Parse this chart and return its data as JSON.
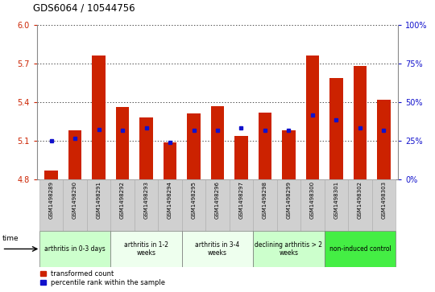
{
  "title": "GDS6064 / 10544756",
  "samples": [
    "GSM1498289",
    "GSM1498290",
    "GSM1498291",
    "GSM1498292",
    "GSM1498293",
    "GSM1498294",
    "GSM1498295",
    "GSM1498296",
    "GSM1498297",
    "GSM1498298",
    "GSM1498299",
    "GSM1498300",
    "GSM1498301",
    "GSM1498302",
    "GSM1498303"
  ],
  "bar_values": [
    4.87,
    5.18,
    5.76,
    5.36,
    5.28,
    5.09,
    5.31,
    5.37,
    5.14,
    5.32,
    5.18,
    5.76,
    5.59,
    5.68,
    5.42
  ],
  "blue_dot_values": [
    5.1,
    5.12,
    5.19,
    5.18,
    5.2,
    5.09,
    5.18,
    5.18,
    5.2,
    5.18,
    5.18,
    5.3,
    5.26,
    5.2,
    5.18
  ],
  "ylim": [
    4.8,
    6.0
  ],
  "yticks": [
    4.8,
    5.1,
    5.4,
    5.7,
    6.0
  ],
  "right_yticks_pct": [
    0,
    25,
    50,
    75,
    100
  ],
  "bar_color": "#cc2200",
  "dot_color": "#1111cc",
  "grid_color": "#000000",
  "groups": [
    {
      "label": "arthritis in 0-3 days",
      "start": 0,
      "end": 3,
      "color": "#ccffcc",
      "small": true
    },
    {
      "label": "arthritis in 1-2\nweeks",
      "start": 3,
      "end": 6,
      "color": "#eeffee",
      "small": false
    },
    {
      "label": "arthritis in 3-4\nweeks",
      "start": 6,
      "end": 9,
      "color": "#eeffee",
      "small": false
    },
    {
      "label": "declining arthritis > 2\nweeks",
      "start": 9,
      "end": 12,
      "color": "#ccffcc",
      "small": false
    },
    {
      "label": "non-induced control",
      "start": 12,
      "end": 15,
      "color": "#44ee44",
      "small": false
    }
  ],
  "legend_items": [
    {
      "label": "transformed count",
      "color": "#cc2200"
    },
    {
      "label": "percentile rank within the sample",
      "color": "#1111cc"
    }
  ],
  "time_label": "time",
  "bg_color": "#ffffff",
  "sample_box_color": "#d0d0d0",
  "sample_box_edge": "#aaaaaa"
}
